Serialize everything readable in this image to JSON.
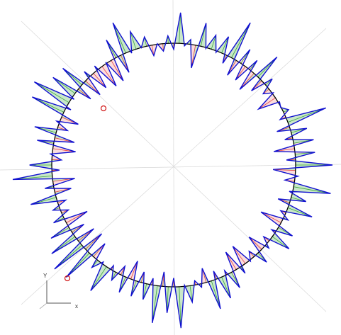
{
  "viewport": {
    "background": "#ffffff",
    "gridline_color": "#d8d8d8",
    "circle_color": "#000000",
    "profile_color": "#1010d0",
    "inner_fill_color": "#e84040",
    "outer_fill_color": "#3ca83c",
    "point_marker_color": "#d01010"
  },
  "axes_triad": {
    "y_label": "Y",
    "x_label": "x",
    "icon": "axes-triad-icon"
  },
  "markers": [
    {
      "name": "start-point-marker",
      "icon": "circle-marker-icon"
    },
    {
      "name": "end-point-marker",
      "icon": "circle-marker-icon"
    }
  ],
  "profile": {
    "spike_count": 140,
    "seed": 17,
    "mean_radius": 1.0,
    "max_outward_deviation": 0.34,
    "max_inward_deviation": 0.2
  }
}
